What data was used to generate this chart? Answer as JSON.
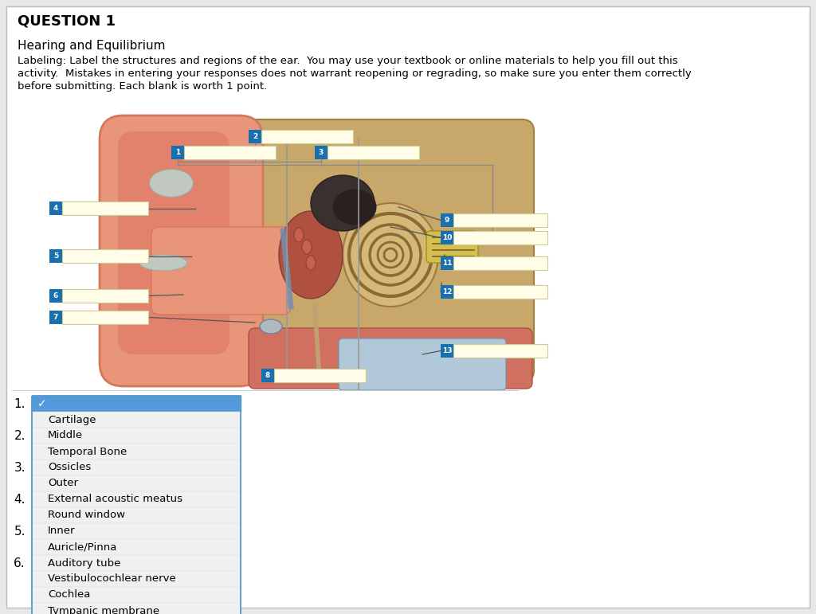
{
  "bg_color": "#e8e8e8",
  "page_bg": "#ffffff",
  "title": "QUESTION 1",
  "subtitle": "Hearing and Equilibrium",
  "desc_line1": "Labeling: Label the structures and regions of the ear.  You may use your textbook or online materials to help you fill out this",
  "desc_line2": "activity.  Mistakes in entering your responses does not warrant reopening or regrading, so make sure you enter them correctly",
  "desc_line3": "before submitting. Each blank is worth 1 point.",
  "label_box_color": "#fffde7",
  "label_box_border": "#cccc99",
  "num_badge_color": "#1a6faf",
  "num_badge_text": "#ffffff",
  "dropdown_header_color": "#5599dd",
  "dropdown_bg": "#f2f2f2",
  "dropdown_border": "#5599cc",
  "dropdown_items": [
    "✓",
    "Cartilage",
    "Middle",
    "Temporal Bone",
    "Ossicles",
    "Outer",
    "External acoustic meatus",
    "Round window",
    "Inner",
    "Auricle/Pinna",
    "Auditory tube",
    "Vestibulocochlear nerve",
    "Cochlea",
    "Tympanic membrane"
  ],
  "side_numbers": [
    1,
    2,
    3,
    4,
    5,
    6
  ],
  "line_color": "#555555",
  "separator_color": "#cccccc",
  "ear_colors": {
    "pinna_outer": "#e8957a",
    "pinna_inner": "#d4785a",
    "canal_outer": "#c9a96e",
    "canal_inner": "#b8954a",
    "bone_bg": "#c8a86a",
    "cochlea_fill": "#d4b87a",
    "cochlea_line": "#8a6a30",
    "ossicle": "#c07060",
    "nerve": "#d4c050",
    "membrane": "#7090b0"
  }
}
